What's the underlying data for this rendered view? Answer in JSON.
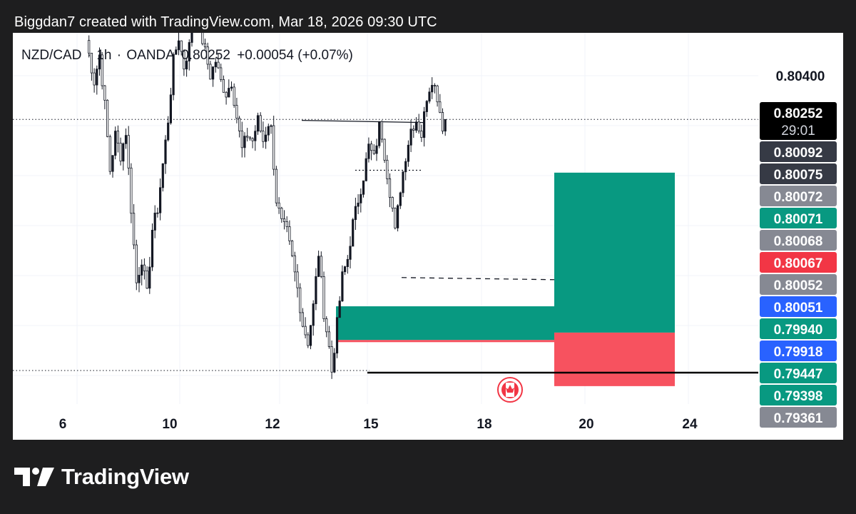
{
  "header": {
    "title": "Biggdan7 created with TradingView.com, Mar 18, 2026 09:30 UTC"
  },
  "symbol": {
    "pair": "NZD/CAD",
    "interval": "1h",
    "broker": "OANDA",
    "last": "0.80252",
    "change": "+0.00054 (+0.07%)"
  },
  "footer": {
    "brand": "TradingView"
  },
  "colors": {
    "up": "#089981",
    "down": "#f23645",
    "target_zone": "#089981",
    "stop_zone": "#f7525f",
    "blue": "#2962ff",
    "grey": "#868993",
    "dark": "#363a45",
    "black": "#000000"
  },
  "chart_data": {
    "type": "candlestick",
    "symbol": "NZD/CAD",
    "timeframe": "1h",
    "x_ticks": [
      "6",
      "10",
      "12",
      "15",
      "18",
      "20",
      "24"
    ],
    "y_ticks": [
      "0.80400"
    ],
    "price_labels": [
      {
        "value": "0.80252",
        "countdown": "29:01",
        "style": "black"
      },
      {
        "value": "0.80092",
        "style": "dark"
      },
      {
        "value": "0.80075",
        "style": "dark"
      },
      {
        "value": "0.80072",
        "style": "grey"
      },
      {
        "value": "0.80071",
        "style": "up"
      },
      {
        "value": "0.80068",
        "style": "grey"
      },
      {
        "value": "0.80067",
        "style": "down"
      },
      {
        "value": "0.80052",
        "style": "grey"
      },
      {
        "value": "0.80051",
        "style": "blue"
      },
      {
        "value": "0.79940",
        "style": "up"
      },
      {
        "value": "0.79918",
        "style": "blue"
      },
      {
        "value": "0.79447",
        "style": "up"
      },
      {
        "value": "0.79398",
        "style": "up"
      },
      {
        "value": "0.79361",
        "style": "grey"
      }
    ],
    "path": [
      [
        0,
        0.8052
      ],
      [
        3,
        0.8038
      ],
      [
        5,
        0.8047
      ],
      [
        7,
        0.803
      ],
      [
        9,
        0.8008
      ],
      [
        11,
        0.802
      ],
      [
        13,
        0.8013
      ],
      [
        15,
        0.8021
      ],
      [
        17,
        0.7995
      ],
      [
        19,
        0.797
      ],
      [
        21,
        0.7978
      ],
      [
        23,
        0.7966
      ],
      [
        25,
        0.7988
      ],
      [
        27,
        0.7995
      ],
      [
        29,
        0.801
      ],
      [
        31,
        0.8025
      ],
      [
        33,
        0.8045
      ],
      [
        35,
        0.8053
      ],
      [
        37,
        0.8043
      ],
      [
        39,
        0.805
      ],
      [
        41,
        0.8062
      ],
      [
        43,
        0.8056
      ],
      [
        45,
        0.8048
      ],
      [
        47,
        0.804
      ],
      [
        49,
        0.8045
      ],
      [
        51,
        0.8038
      ],
      [
        53,
        0.8034
      ],
      [
        55,
        0.8038
      ],
      [
        57,
        0.8026
      ],
      [
        59,
        0.8015
      ],
      [
        61,
        0.802
      ],
      [
        63,
        0.8018
      ],
      [
        65,
        0.8025
      ],
      [
        67,
        0.8018
      ],
      [
        69,
        0.8024
      ],
      [
        70,
        0.8022
      ],
      [
        72,
        0.7998
      ],
      [
        74,
        0.799
      ],
      [
        76,
        0.7987
      ],
      [
        78,
        0.7978
      ],
      [
        80,
        0.7968
      ],
      [
        82,
        0.7956
      ],
      [
        84,
        0.795
      ],
      [
        86,
        0.7962
      ],
      [
        88,
        0.798
      ],
      [
        90,
        0.796
      ],
      [
        92,
        0.7948
      ],
      [
        93,
        0.794
      ],
      [
        95,
        0.7956
      ],
      [
        97,
        0.7972
      ],
      [
        99,
        0.7978
      ],
      [
        101,
        0.799
      ],
      [
        103,
        0.7998
      ],
      [
        105,
        0.8006
      ],
      [
        107,
        0.8016
      ],
      [
        109,
        0.8012
      ],
      [
        111,
        0.8023
      ],
      [
        112,
        0.802
      ],
      [
        114,
        0.8007
      ],
      [
        116,
        0.7995
      ],
      [
        117,
        0.7987
      ],
      [
        119,
        0.8002
      ],
      [
        121,
        0.8013
      ],
      [
        123,
        0.8022
      ],
      [
        125,
        0.8025
      ],
      [
        127,
        0.802
      ],
      [
        129,
        0.8033
      ],
      [
        131,
        0.8039
      ],
      [
        133,
        0.8033
      ],
      [
        135,
        0.8023
      ],
      [
        136,
        0.80252
      ]
    ],
    "annotations": {
      "top_line": {
        "value": 0.80256
      },
      "mid_dotted_line": {
        "value": 0.8008
      },
      "dashed_entry_line": {
        "value": 0.7971
      },
      "black_support_line": {
        "value": 0.79398
      },
      "top_dotted_line": {
        "value": 0.80252
      },
      "bottom_dotted_line": {
        "value": 0.79398
      },
      "demand_zone": {
        "top": 0.7962,
        "bottom": 0.79506
      },
      "long_target": {
        "top": 0.80072,
        "bottom": 0.79531
      },
      "long_stop": {
        "top": 0.79531,
        "bottom": 0.7935
      }
    }
  }
}
